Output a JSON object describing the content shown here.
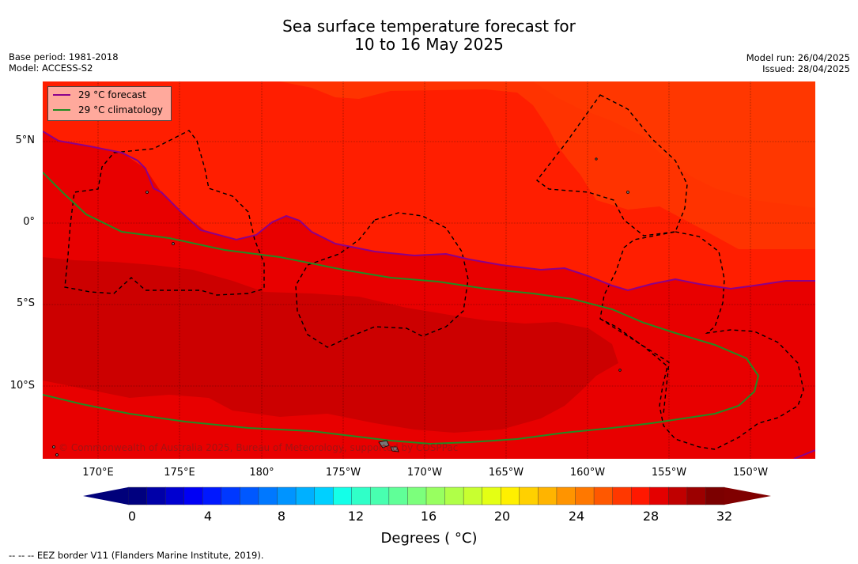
{
  "title_line1": "Sea surface temperature forecast for",
  "title_line2": "10 to 16 May 2025",
  "left_info": {
    "base_period": "Base period: 1981-2018",
    "model": "Model: ACCESS-S2"
  },
  "right_info": {
    "model_run": "Model run: 26/04/2025",
    "issued": "Issued: 28/04/2025"
  },
  "legend": [
    {
      "label": "29 °C  forecast",
      "color": "#8b008b"
    },
    {
      "label": "29 °C  climatology",
      "color": "#228b22"
    }
  ],
  "lat_labels": [
    "5°N",
    "0°",
    "5°S",
    "10°S"
  ],
  "lon_labels": [
    "170°E",
    "175°E",
    "180°",
    "175°W",
    "170°W",
    "165°W",
    "160°W",
    "155°W",
    "150°W"
  ],
  "copyright": "© Commonwealth of Australia 2025, Bureau of Meteorology, supported by COSPPac",
  "colorbar": {
    "ticks": [
      "0",
      "4",
      "8",
      "12",
      "16",
      "20",
      "24",
      "28",
      "32"
    ],
    "label": "Degrees ( °C)",
    "colors": [
      "#00007f",
      "#0000a8",
      "#0000d0",
      "#0000f5",
      "#0018ff",
      "#0038ff",
      "#0058ff",
      "#0078ff",
      "#0094ff",
      "#00b0ff",
      "#00d0ff",
      "#14ffe8",
      "#30ffc8",
      "#48ffb0",
      "#60ff98",
      "#7cff7c",
      "#98ff60",
      "#b0ff48",
      "#c8ff30",
      "#e4ff14",
      "#fff000",
      "#ffd000",
      "#ffb400",
      "#ff9400",
      "#ff7800",
      "#ff5800",
      "#ff3800",
      "#ff1800",
      "#e40000",
      "#c00000",
      "#9c0000",
      "#7c0000"
    ],
    "under_color": "#00007a",
    "over_color": "#800000"
  },
  "footer": "--  --  -- EEZ border V11 (Flanders Marine Institute, 2019)."
}
